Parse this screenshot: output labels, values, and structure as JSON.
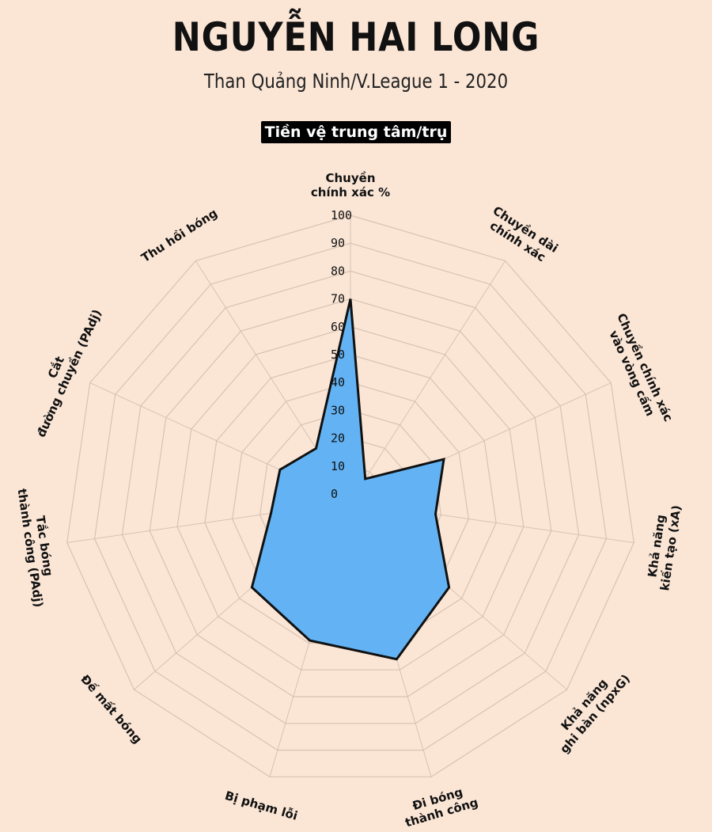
{
  "header": {
    "title": "NGUYỄN HAI LONG",
    "subtitle": "Than Quảng Ninh/V.League 1 - 2020",
    "position_badge": "Tiền vệ trung tâm/trụ"
  },
  "chart_data": {
    "type": "radar",
    "title": "NGUYỄN HAI LONG",
    "subtitle": "Than Quảng Ninh/V.League 1 - 2020",
    "range": [
      0,
      100
    ],
    "ticks": [
      0,
      10,
      20,
      30,
      40,
      50,
      60,
      70,
      80,
      90,
      100
    ],
    "grid": true,
    "colors": {
      "fill": "#63b3f4",
      "stroke": "#111111",
      "grid": "#d6c2b3",
      "background": "#fbe6d6"
    },
    "axes": [
      {
        "lines": [
          "Chuyền",
          "chính xác %"
        ],
        "value": 70
      },
      {
        "lines": [
          "Chuyền dài",
          "chính xác"
        ],
        "value": 7
      },
      {
        "lines": [
          "Chuyền chính xác",
          "vào vòng cấm"
        ],
        "value": 34
      },
      {
        "lines": [
          "Khả năng",
          "kiến tạo (xA)"
        ],
        "value": 28
      },
      {
        "lines": [
          "Khả năng",
          "ghi bàn (npxG)"
        ],
        "value": 44
      },
      {
        "lines": [
          "Đi bóng",
          "thành công"
        ],
        "value": 56
      },
      {
        "lines": [
          "Bị phạm lỗi"
        ],
        "value": 49
      },
      {
        "lines": [
          "Đế mất bóng"
        ],
        "value": 44
      },
      {
        "lines": [
          "Tắc bóng",
          "thành công (PAdj)"
        ],
        "value": 26
      },
      {
        "lines": [
          "Cắt",
          "đường chuyền (PAdj)"
        ],
        "value": 25
      },
      {
        "lines": [
          "Thu hồi bóng"
        ],
        "value": 20
      }
    ]
  }
}
